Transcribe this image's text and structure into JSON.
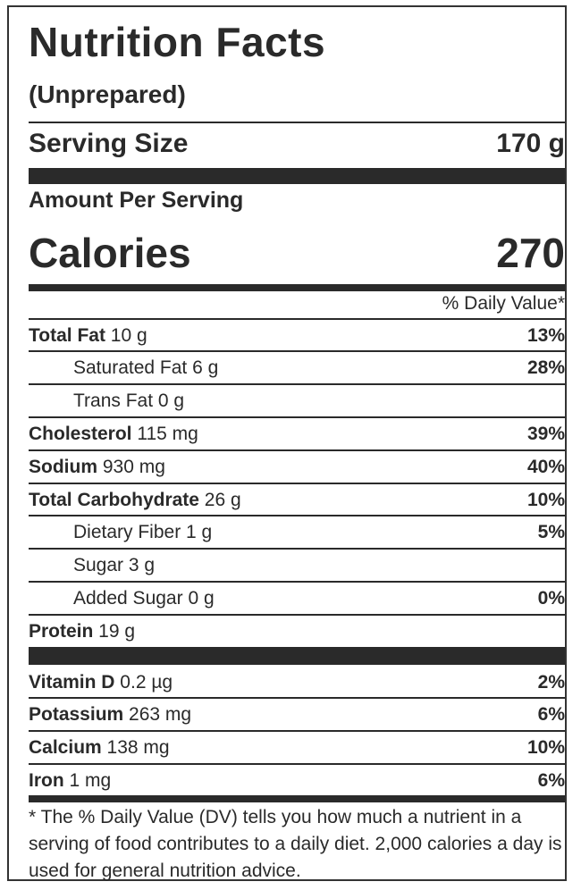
{
  "label": {
    "title": "Nutrition Facts",
    "subtitle": "(Unprepared)",
    "serving_size_label": "Serving Size",
    "serving_size_value": "170 g",
    "amount_per_serving": "Amount Per Serving",
    "calories_label": "Calories",
    "calories_value": "270",
    "daily_value_header": "% Daily Value*",
    "nutrients": [
      {
        "name": "Total Fat",
        "amount": " 10 g",
        "dv": "13%"
      },
      {
        "name": "Saturated Fat",
        "amount": " 6 g",
        "dv": "28%"
      },
      {
        "name": "Trans Fat",
        "amount": " 0 g",
        "dv": ""
      },
      {
        "name": "Cholesterol",
        "amount": " 115 mg",
        "dv": "39%"
      },
      {
        "name": "Sodium",
        "amount": " 930 mg",
        "dv": "40%"
      },
      {
        "name": "Total Carbohydrate",
        "amount": " 26 g",
        "dv": "10%"
      },
      {
        "name": "Dietary Fiber",
        "amount": " 1 g",
        "dv": "5%"
      },
      {
        "name": "Sugar",
        "amount": " 3 g",
        "dv": ""
      },
      {
        "name": "Added Sugar",
        "amount": " 0 g",
        "dv": "0%"
      },
      {
        "name": "Protein",
        "amount": " 19 g",
        "dv": ""
      }
    ],
    "vitamins": [
      {
        "name": "Vitamin D",
        "amount": " 0.2 µg",
        "dv": "2%"
      },
      {
        "name": "Potassium",
        "amount": " 263 mg",
        "dv": "6%"
      },
      {
        "name": "Calcium",
        "amount": " 138 mg",
        "dv": "10%"
      },
      {
        "name": "Iron",
        "amount": " 1 mg",
        "dv": "6%"
      }
    ],
    "footnote": "* The % Daily Value (DV) tells you how much a nutrient in a serving of food contributes to a daily diet. 2,000 calories a day is used for general nutrition advice."
  }
}
